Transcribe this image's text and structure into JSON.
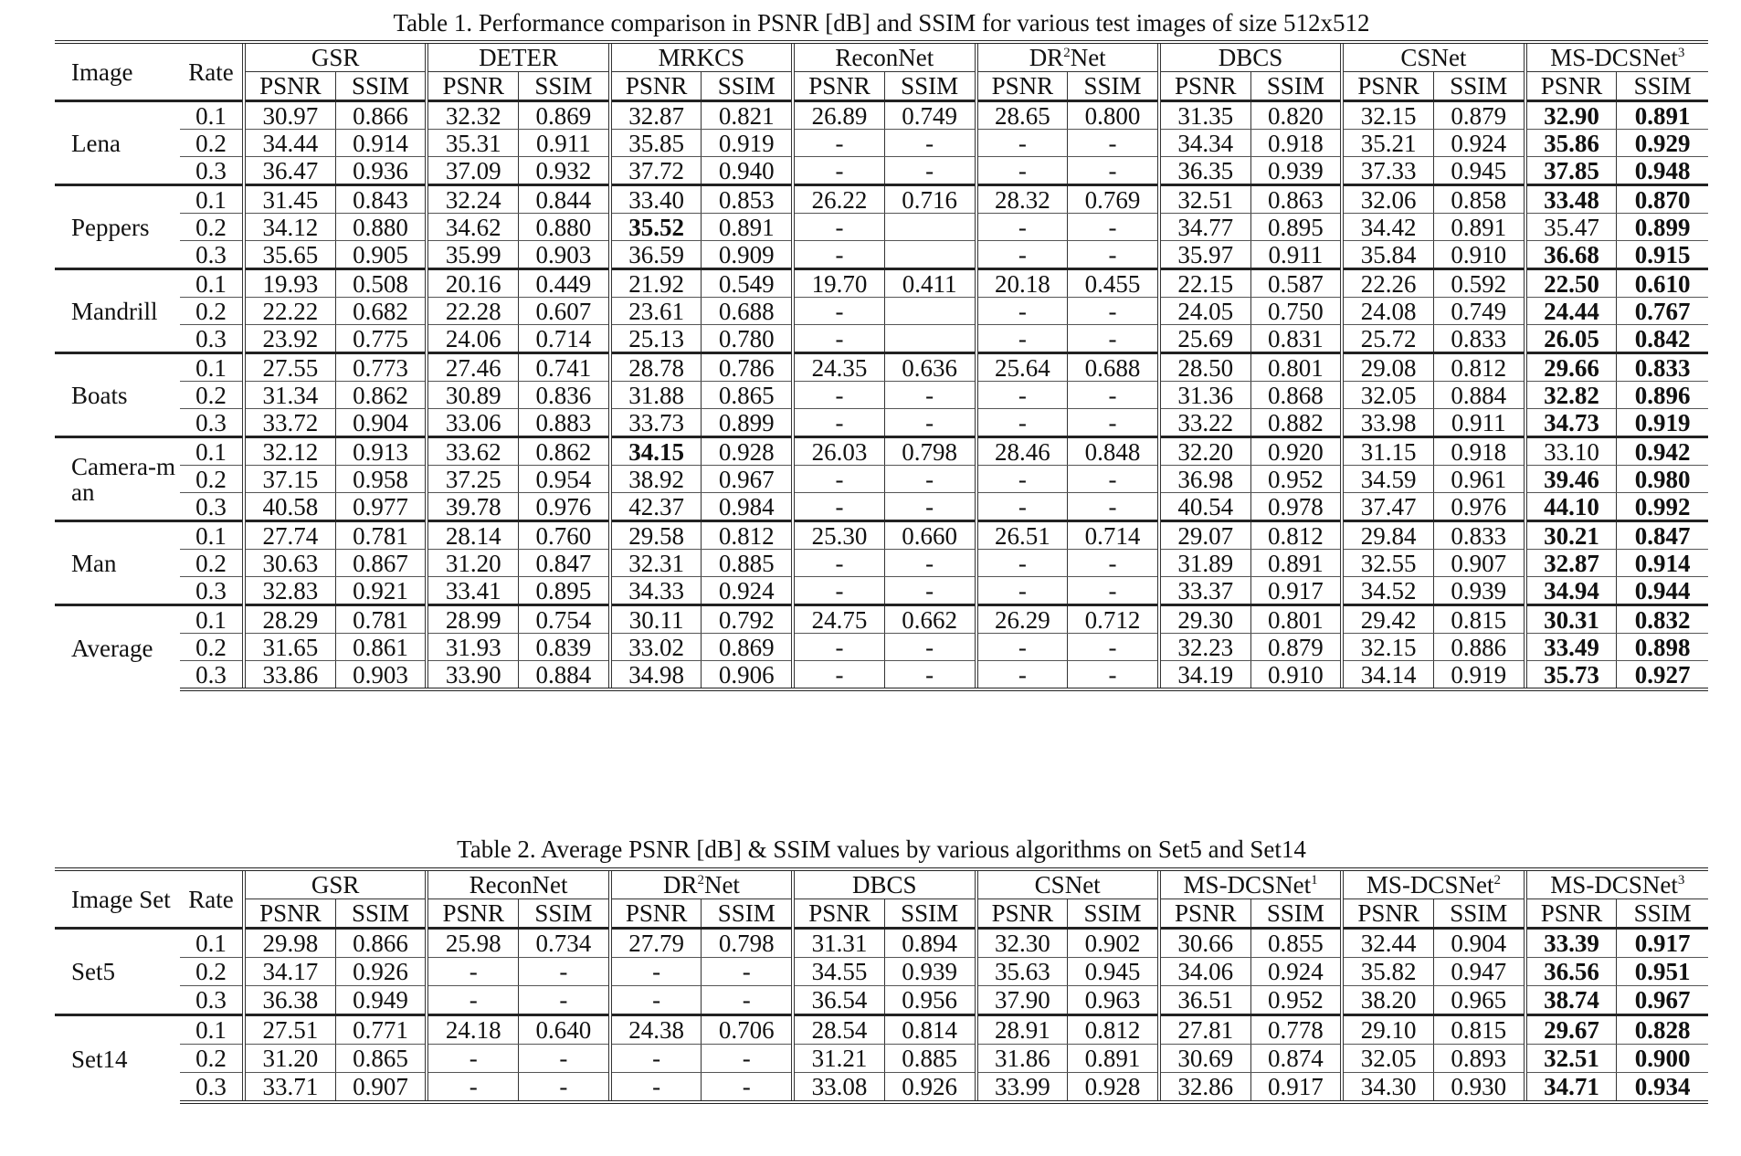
{
  "table1": {
    "caption": "Table 1. Performance comparison in PSNR [dB] and SSIM for various test images of size 512x512",
    "col_image": "Image",
    "col_rate": "Rate",
    "metrics": [
      "PSNR",
      "SSIM"
    ],
    "methods": [
      {
        "name": "GSR",
        "sup": ""
      },
      {
        "name": "DETER",
        "sup": ""
      },
      {
        "name": "MRKCS",
        "sup": ""
      },
      {
        "name": "ReconNet",
        "sup": ""
      },
      {
        "name": "DR",
        "sup": "2",
        "suffix": "Net"
      },
      {
        "name": "DBCS",
        "sup": ""
      },
      {
        "name": "CSNet",
        "sup": ""
      },
      {
        "name": "MS-DCSNet",
        "sup": "3"
      }
    ],
    "blocks": [
      {
        "image": "Lena",
        "rows": [
          {
            "rate": "0.1",
            "values": [
              "30.97",
              "0.866",
              "32.32",
              "0.869",
              "32.87",
              "0.821",
              "26.89",
              "0.749",
              "28.65",
              "0.800",
              "31.35",
              "0.820",
              "32.15",
              "0.879",
              "32.90",
              "0.891"
            ],
            "bold": [
              14,
              15
            ]
          },
          {
            "rate": "0.2",
            "values": [
              "34.44",
              "0.914",
              "35.31",
              "0.911",
              "35.85",
              "0.919",
              "-",
              "-",
              "-",
              "-",
              "34.34",
              "0.918",
              "35.21",
              "0.924",
              "35.86",
              "0.929"
            ],
            "bold": [
              14,
              15
            ]
          },
          {
            "rate": "0.3",
            "values": [
              "36.47",
              "0.936",
              "37.09",
              "0.932",
              "37.72",
              "0.940",
              "-",
              "-",
              "-",
              "-",
              "36.35",
              "0.939",
              "37.33",
              "0.945",
              "37.85",
              "0.948"
            ],
            "bold": [
              14,
              15
            ]
          }
        ]
      },
      {
        "image": "Peppers",
        "rows": [
          {
            "rate": "0.1",
            "values": [
              "31.45",
              "0.843",
              "32.24",
              "0.844",
              "33.40",
              "0.853",
              "26.22",
              "0.716",
              "28.32",
              "0.769",
              "32.51",
              "0.863",
              "32.06",
              "0.858",
              "33.48",
              "0.870"
            ],
            "bold": [
              14,
              15
            ]
          },
          {
            "rate": "0.2",
            "values": [
              "34.12",
              "0.880",
              "34.62",
              "0.880",
              "35.52",
              "0.891",
              "-",
              "",
              "-",
              "-",
              "34.77",
              "0.895",
              "34.42",
              "0.891",
              "35.47",
              "0.899"
            ],
            "bold": [
              4,
              15
            ]
          },
          {
            "rate": "0.3",
            "values": [
              "35.65",
              "0.905",
              "35.99",
              "0.903",
              "36.59",
              "0.909",
              "-",
              "",
              "-",
              "-",
              "35.97",
              "0.911",
              "35.84",
              "0.910",
              "36.68",
              "0.915"
            ],
            "bold": [
              14,
              15
            ]
          }
        ]
      },
      {
        "image": "Mandrill",
        "rows": [
          {
            "rate": "0.1",
            "values": [
              "19.93",
              "0.508",
              "20.16",
              "0.449",
              "21.92",
              "0.549",
              "19.70",
              "0.411",
              "20.18",
              "0.455",
              "22.15",
              "0.587",
              "22.26",
              "0.592",
              "22.50",
              "0.610"
            ],
            "bold": [
              14,
              15
            ]
          },
          {
            "rate": "0.2",
            "values": [
              "22.22",
              "0.682",
              "22.28",
              "0.607",
              "23.61",
              "0.688",
              "-",
              "",
              "-",
              "-",
              "24.05",
              "0.750",
              "24.08",
              "0.749",
              "24.44",
              "0.767"
            ],
            "bold": [
              14,
              15
            ]
          },
          {
            "rate": "0.3",
            "values": [
              "23.92",
              "0.775",
              "24.06",
              "0.714",
              "25.13",
              "0.780",
              "-",
              "",
              "-",
              "-",
              "25.69",
              "0.831",
              "25.72",
              "0.833",
              "26.05",
              "0.842"
            ],
            "bold": [
              14,
              15
            ]
          }
        ]
      },
      {
        "image": "Boats",
        "rows": [
          {
            "rate": "0.1",
            "values": [
              "27.55",
              "0.773",
              "27.46",
              "0.741",
              "28.78",
              "0.786",
              "24.35",
              "0.636",
              "25.64",
              "0.688",
              "28.50",
              "0.801",
              "29.08",
              "0.812",
              "29.66",
              "0.833"
            ],
            "bold": [
              14,
              15
            ]
          },
          {
            "rate": "0.2",
            "values": [
              "31.34",
              "0.862",
              "30.89",
              "0.836",
              "31.88",
              "0.865",
              "-",
              "-",
              "-",
              "-",
              "31.36",
              "0.868",
              "32.05",
              "0.884",
              "32.82",
              "0.896"
            ],
            "bold": [
              14,
              15
            ]
          },
          {
            "rate": "0.3",
            "values": [
              "33.72",
              "0.904",
              "33.06",
              "0.883",
              "33.73",
              "0.899",
              "-",
              "-",
              "-",
              "-",
              "33.22",
              "0.882",
              "33.98",
              "0.911",
              "34.73",
              "0.919"
            ],
            "bold": [
              14,
              15
            ]
          }
        ]
      },
      {
        "image": "Camera-man",
        "rows": [
          {
            "rate": "0.1",
            "values": [
              "32.12",
              "0.913",
              "33.62",
              "0.862",
              "34.15",
              "0.928",
              "26.03",
              "0.798",
              "28.46",
              "0.848",
              "32.20",
              "0.920",
              "31.15",
              "0.918",
              "33.10",
              "0.942"
            ],
            "bold": [
              4,
              15
            ]
          },
          {
            "rate": "0.2",
            "values": [
              "37.15",
              "0.958",
              "37.25",
              "0.954",
              "38.92",
              "0.967",
              "-",
              "-",
              "-",
              "-",
              "36.98",
              "0.952",
              "34.59",
              "0.961",
              "39.46",
              "0.980"
            ],
            "bold": [
              14,
              15
            ]
          },
          {
            "rate": "0.3",
            "values": [
              "40.58",
              "0.977",
              "39.78",
              "0.976",
              "42.37",
              "0.984",
              "-",
              "-",
              "-",
              "-",
              "40.54",
              "0.978",
              "37.47",
              "0.976",
              "44.10",
              "0.992"
            ],
            "bold": [
              14,
              15
            ]
          }
        ]
      },
      {
        "image": "Man",
        "rows": [
          {
            "rate": "0.1",
            "values": [
              "27.74",
              "0.781",
              "28.14",
              "0.760",
              "29.58",
              "0.812",
              "25.30",
              "0.660",
              "26.51",
              "0.714",
              "29.07",
              "0.812",
              "29.84",
              "0.833",
              "30.21",
              "0.847"
            ],
            "bold": [
              14,
              15
            ]
          },
          {
            "rate": "0.2",
            "values": [
              "30.63",
              "0.867",
              "31.20",
              "0.847",
              "32.31",
              "0.885",
              "-",
              "-",
              "-",
              "-",
              "31.89",
              "0.891",
              "32.55",
              "0.907",
              "32.87",
              "0.914"
            ],
            "bold": [
              14,
              15
            ]
          },
          {
            "rate": "0.3",
            "values": [
              "32.83",
              "0.921",
              "33.41",
              "0.895",
              "34.33",
              "0.924",
              "-",
              "-",
              "-",
              "-",
              "33.37",
              "0.917",
              "34.52",
              "0.939",
              "34.94",
              "0.944"
            ],
            "bold": [
              14,
              15
            ]
          }
        ]
      },
      {
        "image": "Average",
        "rows": [
          {
            "rate": "0.1",
            "values": [
              "28.29",
              "0.781",
              "28.99",
              "0.754",
              "30.11",
              "0.792",
              "24.75",
              "0.662",
              "26.29",
              "0.712",
              "29.30",
              "0.801",
              "29.42",
              "0.815",
              "30.31",
              "0.832"
            ],
            "bold": [
              14,
              15
            ]
          },
          {
            "rate": "0.2",
            "values": [
              "31.65",
              "0.861",
              "31.93",
              "0.839",
              "33.02",
              "0.869",
              "-",
              "-",
              "-",
              "-",
              "32.23",
              "0.879",
              "32.15",
              "0.886",
              "33.49",
              "0.898"
            ],
            "bold": [
              14,
              15
            ]
          },
          {
            "rate": "0.3",
            "values": [
              "33.86",
              "0.903",
              "33.90",
              "0.884",
              "34.98",
              "0.906",
              "-",
              "-",
              "-",
              "-",
              "34.19",
              "0.910",
              "34.14",
              "0.919",
              "35.73",
              "0.927"
            ],
            "bold": [
              14,
              15
            ]
          }
        ]
      }
    ]
  },
  "table2": {
    "caption": "Table 2. Average PSNR [dB] & SSIM values by various algorithms on Set5 and Set14",
    "col_image": "Image Set",
    "col_rate": "Rate",
    "metrics": [
      "PSNR",
      "SSIM"
    ],
    "methods": [
      {
        "name": "GSR",
        "sup": ""
      },
      {
        "name": "ReconNet",
        "sup": ""
      },
      {
        "name": "DR",
        "sup": "2",
        "suffix": "Net"
      },
      {
        "name": "DBCS",
        "sup": ""
      },
      {
        "name": "CSNet",
        "sup": ""
      },
      {
        "name": "MS-DCSNet",
        "sup": "1"
      },
      {
        "name": "MS-DCSNet",
        "sup": "2"
      },
      {
        "name": "MS-DCSNet",
        "sup": "3"
      }
    ],
    "blocks": [
      {
        "image": "Set5",
        "rows": [
          {
            "rate": "0.1",
            "values": [
              "29.98",
              "0.866",
              "25.98",
              "0.734",
              "27.79",
              "0.798",
              "31.31",
              "0.894",
              "32.30",
              "0.902",
              "30.66",
              "0.855",
              "32.44",
              "0.904",
              "33.39",
              "0.917"
            ],
            "bold": [
              14,
              15
            ]
          },
          {
            "rate": "0.2",
            "values": [
              "34.17",
              "0.926",
              "-",
              "-",
              "-",
              "-",
              "34.55",
              "0.939",
              "35.63",
              "0.945",
              "34.06",
              "0.924",
              "35.82",
              "0.947",
              "36.56",
              "0.951"
            ],
            "bold": [
              14,
              15
            ]
          },
          {
            "rate": "0.3",
            "values": [
              "36.38",
              "0.949",
              "-",
              "-",
              "-",
              "-",
              "36.54",
              "0.956",
              "37.90",
              "0.963",
              "36.51",
              "0.952",
              "38.20",
              "0.965",
              "38.74",
              "0.967"
            ],
            "bold": [
              14,
              15
            ]
          }
        ]
      },
      {
        "image": "Set14",
        "rows": [
          {
            "rate": "0.1",
            "values": [
              "27.51",
              "0.771",
              "24.18",
              "0.640",
              "24.38",
              "0.706",
              "28.54",
              "0.814",
              "28.91",
              "0.812",
              "27.81",
              "0.778",
              "29.10",
              "0.815",
              "29.67",
              "0.828"
            ],
            "bold": [
              14,
              15
            ]
          },
          {
            "rate": "0.2",
            "values": [
              "31.20",
              "0.865",
              "-",
              "-",
              "-",
              "-",
              "31.21",
              "0.885",
              "31.86",
              "0.891",
              "30.69",
              "0.874",
              "32.05",
              "0.893",
              "32.51",
              "0.900"
            ],
            "bold": [
              14,
              15
            ]
          },
          {
            "rate": "0.3",
            "values": [
              "33.71",
              "0.907",
              "-",
              "-",
              "-",
              "-",
              "33.08",
              "0.926",
              "33.99",
              "0.928",
              "32.86",
              "0.917",
              "34.30",
              "0.930",
              "34.71",
              "0.934"
            ],
            "bold": [
              14,
              15
            ]
          }
        ]
      }
    ]
  }
}
